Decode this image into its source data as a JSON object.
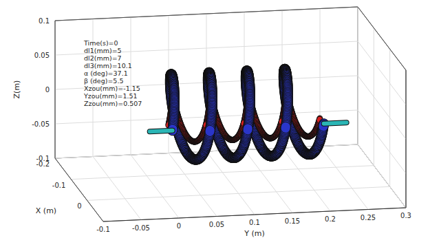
{
  "chart_data": {
    "type": "3d_helix",
    "xlabel": "X (m)",
    "ylabel": "Y (m)",
    "zlabel": "Z(m)",
    "xlim": [
      -0.2,
      0.1
    ],
    "xticks": [
      -0.2,
      -0.1,
      0
    ],
    "ylim": [
      -0.1,
      0.3
    ],
    "yticks": [
      -0.1,
      -0.05,
      0,
      0.05,
      0.1,
      0.15,
      0.2,
      0.25,
      0.3
    ],
    "zlim": [
      -0.1,
      0.1
    ],
    "zticks": [
      -0.1,
      -0.05,
      0,
      0.05,
      0.1
    ],
    "grid": true,
    "annotations": [
      "Time(s)=0",
      "dl1(mm)=5",
      "dl2(mm)=7",
      "dl3(mm)=10.1",
      "α (deg)=37.1",
      "β (deg)=5.5",
      "Xzou(mm)=-1.15",
      "Yzou(mm)=1.51",
      "Zzou(mm)=0.507"
    ],
    "helix": {
      "turns": 4,
      "y_range": [
        0,
        0.2
      ],
      "end_range": [
        -0.03,
        0.23
      ],
      "center_x": 0,
      "center_z": 0.015,
      "outer_radius": 0.06,
      "inner_radius": 0.035,
      "color": "#2a35c9",
      "inner_color": "#d42020",
      "end_color": "#2ab5b5"
    }
  }
}
